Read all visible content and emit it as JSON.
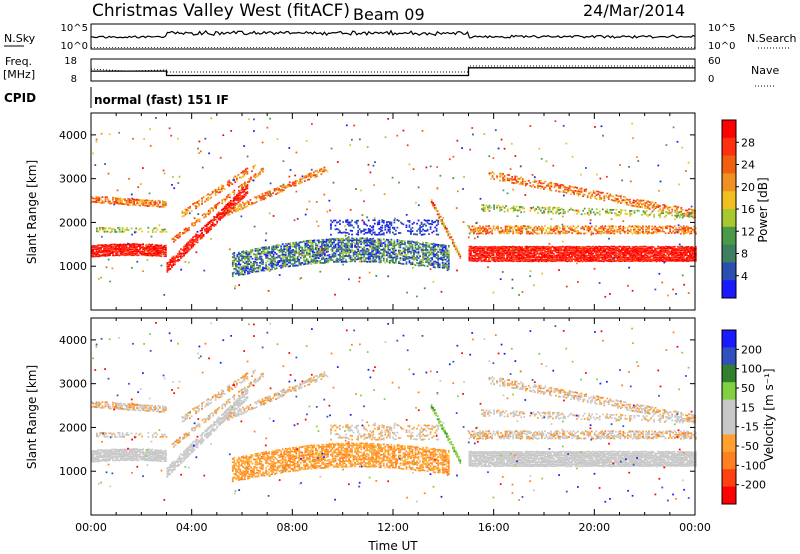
{
  "header": {
    "station": "Christmas Valley West (fitACF)",
    "beam": "Beam 09",
    "date": "24/Mar/2014"
  },
  "strip1": {
    "left_label": "N.Sky",
    "left_ticks": [
      "10^5",
      "10^0"
    ],
    "right_ticks": [
      "10^5",
      "10^0"
    ],
    "right_label": "N.Search"
  },
  "strip2": {
    "left_label_1": "Freq.",
    "left_label_2": "[MHz]",
    "left_ticks": [
      "18",
      "8"
    ],
    "right_ticks": [
      "60",
      "0"
    ],
    "right_label": "Nave"
  },
  "cpid": {
    "label": "CPID",
    "mode": "normal (fast) 151 IF"
  },
  "colors": {
    "power_scale": [
      "#1a1aff",
      "#2a4fb0",
      "#3e7f60",
      "#4a9a4a",
      "#a8c830",
      "#f0c020",
      "#f09020",
      "#f06010",
      "#ff3010",
      "#ff0000"
    ],
    "velocity_scale": [
      "#ff0000",
      "#ff4010",
      "#ff8020",
      "#ffa030",
      "#c8c8c8",
      "#c8c8c8",
      "#80d040",
      "#308030",
      "#3050c0",
      "#1a1aff"
    ],
    "ground_scatter": "#c8c8c8"
  },
  "chart_data": [
    {
      "type": "heatmap",
      "name": "power",
      "xlabel": "Time UT",
      "ylabel": "Slant Range [km]",
      "xlim": [
        0,
        24
      ],
      "ylim": [
        0,
        4500
      ],
      "x_ticks": [
        "00:00",
        "04:00",
        "08:00",
        "12:00",
        "16:00",
        "20:00",
        "00:00"
      ],
      "y_ticks": [
        1000,
        2000,
        3000,
        4000
      ],
      "colorbar_label": "Power [dB]",
      "colorbar_ticks": [
        "28",
        "24",
        "20",
        "16",
        "12",
        "8",
        "4"
      ],
      "colorbar_range": [
        0,
        30
      ]
    },
    {
      "type": "heatmap",
      "name": "velocity",
      "xlabel": "Time UT",
      "ylabel": "Slant Range [km]",
      "xlim": [
        0,
        24
      ],
      "ylim": [
        0,
        4500
      ],
      "x_ticks": [
        "00:00",
        "04:00",
        "08:00",
        "12:00",
        "16:00",
        "20:00",
        "00:00"
      ],
      "y_ticks": [
        1000,
        2000,
        3000,
        4000
      ],
      "colorbar_label": "Velocity [m s⁻¹]",
      "colorbar_ticks": [
        "200",
        "100",
        "50",
        "15",
        "-15",
        "-50",
        "-100",
        "-200"
      ],
      "colorbar_range": [
        -250,
        250
      ]
    }
  ],
  "freq_trace": {
    "times": [
      0,
      3,
      3,
      15,
      15,
      24
    ],
    "freq": [
      12.5,
      12.5,
      10.5,
      10.5,
      14.0,
      14.0
    ]
  },
  "x_axis_title": "Time UT"
}
